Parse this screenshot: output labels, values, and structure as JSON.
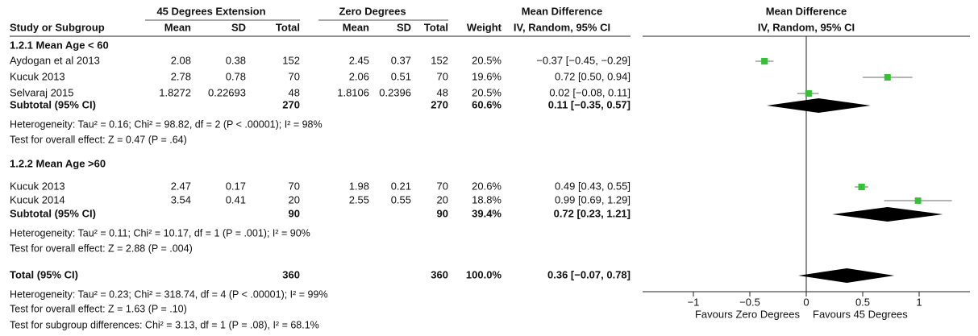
{
  "chart_data": {
    "type": "forest",
    "headers": {
      "group1": "45 Degrees Extension",
      "group2": "Zero Degrees",
      "md_table": "Mean Difference",
      "md_plot": "Mean Difference",
      "study": "Study or Subgroup",
      "mean1": "Mean",
      "sd1": "SD",
      "total1": "Total",
      "mean2": "Mean",
      "sd2": "SD",
      "total2": "Total",
      "weight": "Weight",
      "method_table": "IV, Random, 95% CI",
      "method_plot": "IV, Random, 95% CI"
    },
    "groups": [
      {
        "title": "1.2.1 Mean Age < 60",
        "studies": [
          {
            "study": "Aydogan et al 2013",
            "mean1": 2.08,
            "sd1": 0.38,
            "total1": 152,
            "mean2": 2.45,
            "sd2": 0.37,
            "total2": 152,
            "weight": 20.5,
            "weight_label": "20.5%",
            "md": -0.37,
            "lo": -0.45,
            "hi": -0.29,
            "ci_label": "−0.37 [−0.45, −0.29]"
          },
          {
            "study": "Kucuk 2013",
            "mean1": 2.78,
            "sd1": 0.78,
            "total1": 70,
            "mean2": 2.06,
            "sd2": 0.51,
            "total2": 70,
            "weight": 19.6,
            "weight_label": "19.6%",
            "md": 0.72,
            "lo": 0.5,
            "hi": 0.94,
            "ci_label": "0.72 [0.50, 0.94]"
          },
          {
            "study": "Selvaraj 2015",
            "mean1": 1.8272,
            "sd1": 0.22693,
            "total1": 48,
            "mean2": 1.8106,
            "sd2": 0.2396,
            "total2": 48,
            "weight": 20.5,
            "weight_label": "20.5%",
            "md": 0.02,
            "lo": -0.08,
            "hi": 0.11,
            "ci_label": "0.02 [−0.08, 0.11]"
          }
        ],
        "subtotal": {
          "label": "Subtotal (95% CI)",
          "total1": 270,
          "total2": 270,
          "weight": 60.6,
          "weight_label": "60.6%",
          "md": 0.11,
          "lo": -0.35,
          "hi": 0.57,
          "ci_label": "0.11 [−0.35, 0.57]"
        },
        "heterogeneity": "Heterogeneity: Tau² = 0.16; Chi² = 98.82, df = 2 (P < .00001); I² = 98%",
        "overall_effect": "Test for overall effect: Z = 0.47 (P = .64)"
      },
      {
        "title": "1.2.2 Mean Age >60",
        "studies": [
          {
            "study": "Kucuk 2013",
            "mean1": 2.47,
            "sd1": 0.17,
            "total1": 70,
            "mean2": 1.98,
            "sd2": 0.21,
            "total2": 70,
            "weight": 20.6,
            "weight_label": "20.6%",
            "md": 0.49,
            "lo": 0.43,
            "hi": 0.55,
            "ci_label": "0.49 [0.43, 0.55]"
          },
          {
            "study": "Kucuk 2014",
            "mean1": 3.54,
            "sd1": 0.41,
            "total1": 20,
            "mean2": 2.55,
            "sd2": 0.55,
            "total2": 20,
            "weight": 18.8,
            "weight_label": "18.8%",
            "md": 0.99,
            "lo": 0.69,
            "hi": 1.29,
            "ci_label": "0.99 [0.69, 1.29]"
          }
        ],
        "subtotal": {
          "label": "Subtotal (95% CI)",
          "total1": 90,
          "total2": 90,
          "weight": 39.4,
          "weight_label": "39.4%",
          "md": 0.72,
          "lo": 0.23,
          "hi": 1.21,
          "ci_label": "0.72 [0.23, 1.21]"
        },
        "heterogeneity": "Heterogeneity: Tau² = 0.11; Chi² = 10.17, df = 1 (P = .001); I² = 90%",
        "overall_effect": "Test for overall effect: Z = 2.88 (P = .004)"
      }
    ],
    "total": {
      "label": "Total (95% CI)",
      "total1": 360,
      "total2": 360,
      "weight": 100,
      "weight_label": "100.0%",
      "md": 0.36,
      "lo": -0.07,
      "hi": 0.78,
      "ci_label": "0.36 [−0.07, 0.78]"
    },
    "total_heterogeneity": "Heterogeneity: Tau² = 0.23; Chi² = 318.74, df = 4 (P < .00001); I² = 99%",
    "total_overall_effect": "Test for overall effect: Z = 1.63 (P = .10)",
    "subgroup_differences": "Test for subgroup differences: Chi² = 3.13, df = 1 (P = .08), I² = 68.1%",
    "xlim": [
      -1.45,
      1.45
    ],
    "xticks": [
      {
        "value": -1,
        "label": "−1"
      },
      {
        "value": -0.5,
        "label": "−0.5"
      },
      0,
      0.5,
      1
    ],
    "favours_left": "Favours Zero Degrees",
    "favours_right": "Favours 45 Degrees",
    "square_color": "#33c233",
    "ci_color": "#888888",
    "diamond_color": "#000000"
  }
}
